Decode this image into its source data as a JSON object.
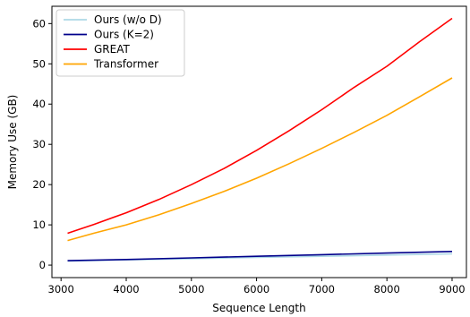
{
  "chart_data": {
    "type": "line",
    "title": "",
    "xlabel": "Sequence Length",
    "ylabel": "Memory Use (GB)",
    "xlim": [
      2860,
      9220
    ],
    "ylim": [
      -3.1,
      64.3
    ],
    "xticks": [
      3000,
      4000,
      5000,
      6000,
      7000,
      8000,
      9000
    ],
    "yticks": [
      0,
      10,
      20,
      30,
      40,
      50,
      60
    ],
    "grid": false,
    "legend_position": "top-left",
    "series": [
      {
        "name": "Ours (w/o D)",
        "color": "#add8e6",
        "x": [
          3100,
          4000,
          5000,
          6000,
          7000,
          8000,
          9000
        ],
        "y": [
          1.0,
          1.3,
          1.6,
          1.9,
          2.2,
          2.5,
          2.8
        ]
      },
      {
        "name": "Ours (K=2)",
        "color": "#00008b",
        "x": [
          3100,
          4000,
          5000,
          6000,
          7000,
          8000,
          9000
        ],
        "y": [
          1.1,
          1.4,
          1.8,
          2.2,
          2.6,
          3.0,
          3.4
        ]
      },
      {
        "name": "GREAT",
        "color": "#ff0000",
        "x": [
          3100,
          3500,
          4000,
          4500,
          5000,
          5500,
          6000,
          6500,
          7000,
          7500,
          8000,
          8500,
          9000
        ],
        "y": [
          7.9,
          10.1,
          13.0,
          16.3,
          20.0,
          24.0,
          28.5,
          33.4,
          38.6,
          44.2,
          49.4,
          55.5,
          61.3
        ]
      },
      {
        "name": "Transformer",
        "color": "#ffa500",
        "x": [
          3100,
          3500,
          4000,
          4500,
          5000,
          5500,
          6000,
          6500,
          7000,
          7500,
          8000,
          8500,
          9000
        ],
        "y": [
          6.1,
          7.9,
          10.0,
          12.5,
          15.3,
          18.3,
          21.6,
          25.2,
          29.0,
          33.0,
          37.2,
          41.8,
          46.5
        ]
      }
    ]
  }
}
